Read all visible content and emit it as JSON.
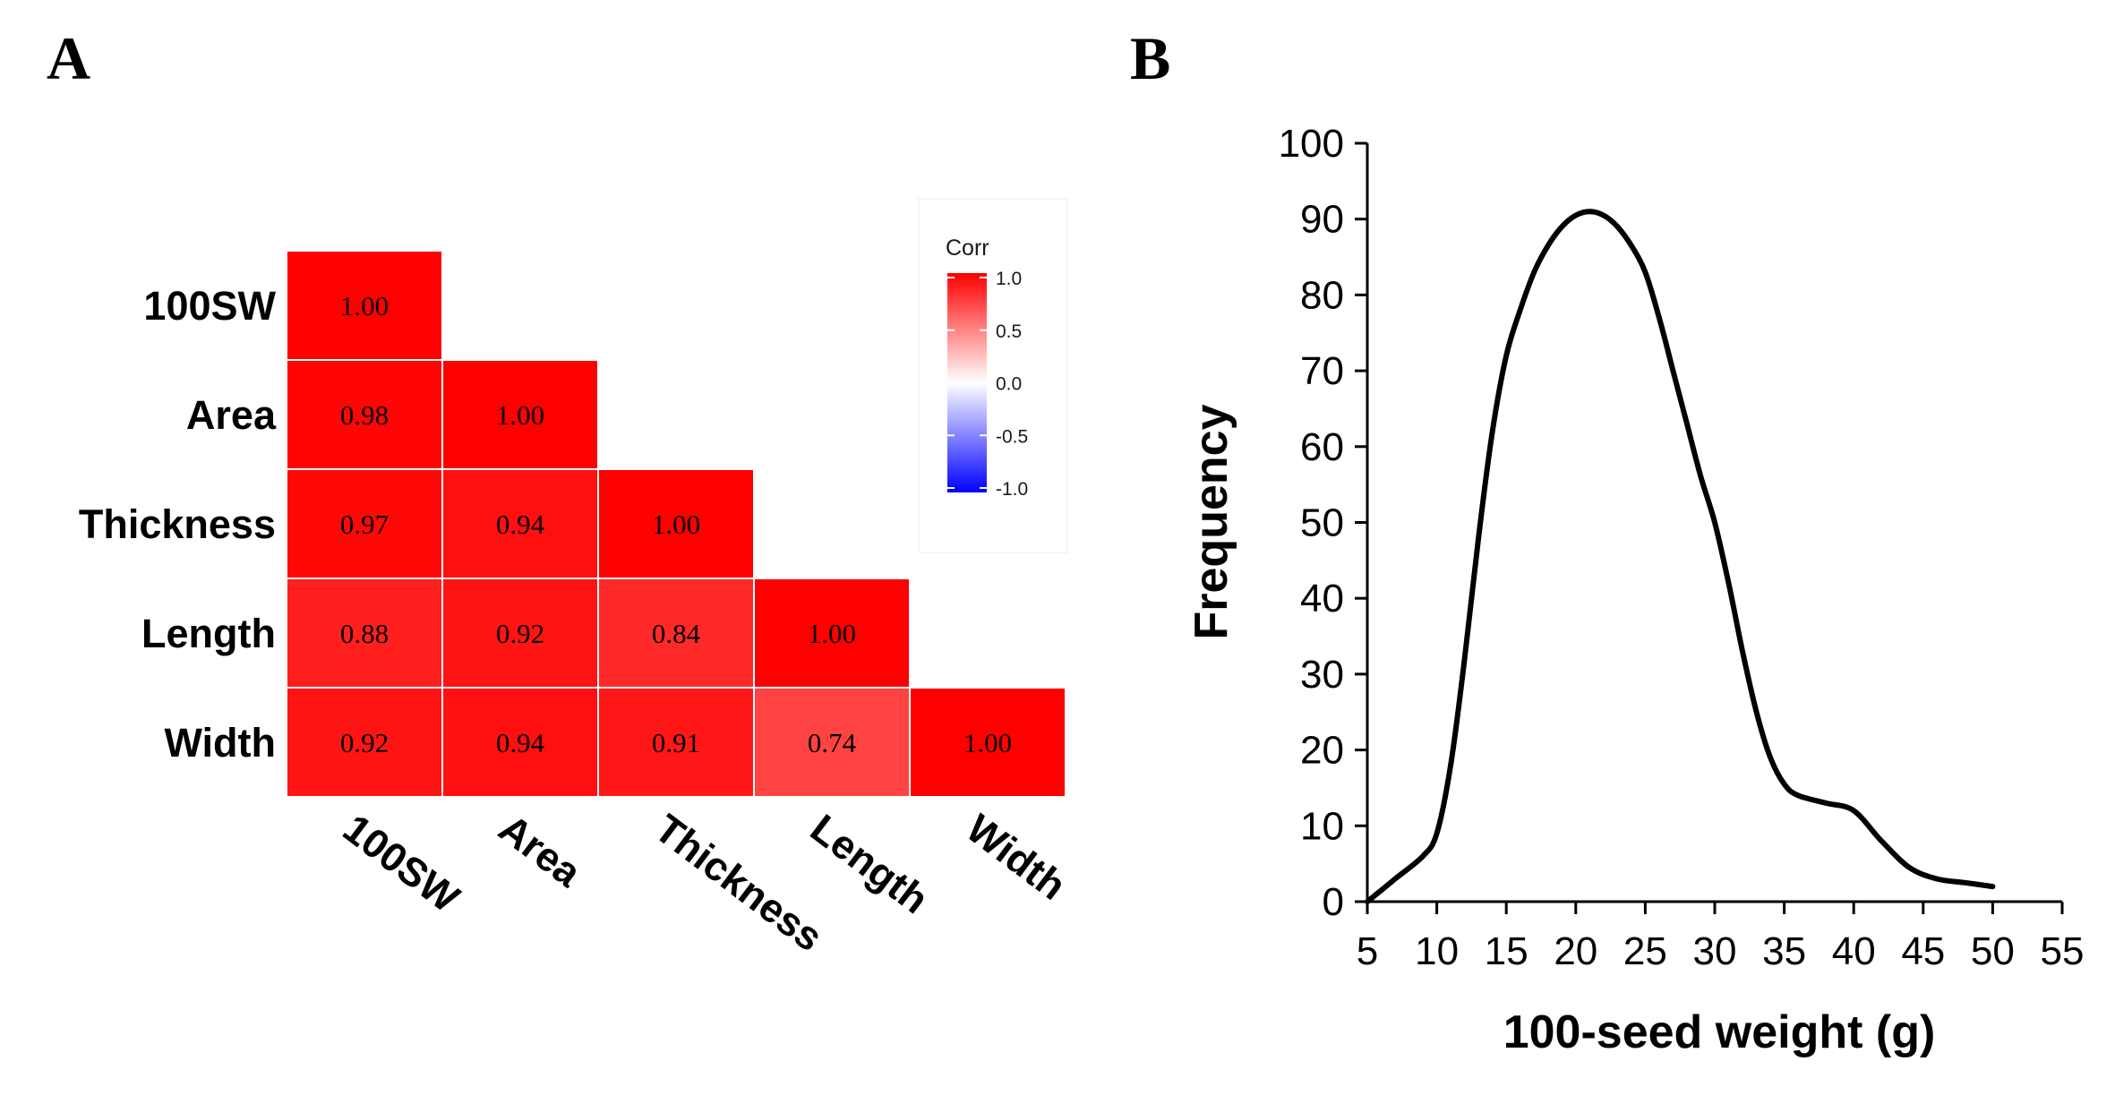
{
  "chart_data": [
    {
      "panel": "A",
      "type": "heatmap",
      "row_labels": [
        "100SW",
        "Area",
        "Thickness",
        "Length",
        "Width"
      ],
      "col_labels": [
        "100SW",
        "Area",
        "Thickness",
        "Length",
        "Width"
      ],
      "values": [
        [
          1.0,
          null,
          null,
          null,
          null
        ],
        [
          0.98,
          1.0,
          null,
          null,
          null
        ],
        [
          0.97,
          0.94,
          1.0,
          null,
          null
        ],
        [
          0.88,
          0.92,
          0.84,
          1.0,
          null
        ],
        [
          0.92,
          0.94,
          0.91,
          0.74,
          1.0
        ]
      ],
      "value_labels": [
        [
          "1.00"
        ],
        [
          "0.98",
          "1.00"
        ],
        [
          "0.97",
          "0.94",
          "1.00"
        ],
        [
          "0.88",
          "0.92",
          "0.84",
          "1.00"
        ],
        [
          "0.92",
          "0.94",
          "0.91",
          "0.74",
          "1.00"
        ]
      ],
      "legend": {
        "title": "Corr",
        "ticks": [
          "1.0",
          "0.5",
          "0.0",
          "-0.5",
          "-1.0"
        ],
        "range": [
          -1.0,
          1.0
        ],
        "colors": {
          "high": "#ff0000",
          "mid": "#ffffff",
          "low": "#0000ff"
        }
      }
    },
    {
      "panel": "B",
      "type": "line",
      "x": [
        5,
        7,
        9,
        10,
        11,
        12,
        13,
        14,
        15,
        16,
        17,
        18,
        19,
        20,
        21,
        22,
        23,
        24,
        25,
        26,
        27,
        28,
        29,
        30,
        31,
        32,
        33,
        34,
        35,
        36,
        38,
        40,
        42,
        44,
        46,
        48,
        50
      ],
      "y": [
        0,
        3,
        6,
        9,
        18,
        32,
        48,
        62,
        72,
        78,
        83,
        86.5,
        89,
        90.5,
        91,
        90.5,
        89,
        86.5,
        83,
        77,
        70,
        63,
        56,
        50,
        42,
        33,
        25,
        19,
        15.5,
        14,
        13,
        12,
        8,
        4.5,
        3,
        2.5,
        2
      ],
      "xlabel": "100-seed weight (g)",
      "ylabel": "Frequency",
      "xlim": [
        5,
        55
      ],
      "ylim": [
        0,
        100
      ],
      "x_ticks": [
        "5",
        "10",
        "15",
        "20",
        "25",
        "30",
        "35",
        "40",
        "45",
        "50",
        "55"
      ],
      "y_ticks": [
        "0",
        "10",
        "20",
        "30",
        "40",
        "50",
        "60",
        "70",
        "80",
        "90",
        "100"
      ]
    }
  ],
  "panels": {
    "a_label": "A",
    "b_label": "B"
  }
}
